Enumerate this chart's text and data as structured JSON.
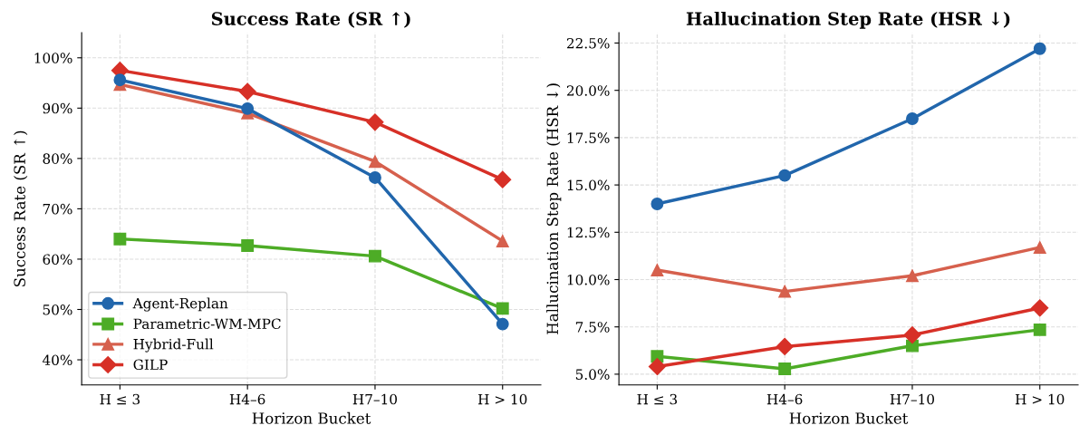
{
  "chart_data": [
    {
      "type": "line",
      "title": "Success Rate (SR ↑)",
      "xlabel": "Horizon Bucket",
      "ylabel": "Success Rate (SR ↑)",
      "categories": [
        "H ≤ 3",
        "H4–6",
        "H7–10",
        "H > 10"
      ],
      "ylim": [
        35,
        105
      ],
      "yticks": [
        {
          "value": 40,
          "label": "40%"
        },
        {
          "value": 50,
          "label": "50%"
        },
        {
          "value": 60,
          "label": "60%"
        },
        {
          "value": 70,
          "label": "70%"
        },
        {
          "value": 80,
          "label": "80%"
        },
        {
          "value": 90,
          "label": "90%"
        },
        {
          "value": 100,
          "label": "100%"
        }
      ],
      "grid": true,
      "legend": "bottom left",
      "series": [
        {
          "name": "Agent-Replan",
          "color": "#2166ac",
          "marker": "circle",
          "values": [
            95.6,
            89.9,
            76.2,
            47.1
          ]
        },
        {
          "name": "Parametric-WM-MPC",
          "color": "#4dac26",
          "marker": "square",
          "values": [
            64.0,
            62.7,
            60.6,
            50.2
          ]
        },
        {
          "name": "Hybrid-Full",
          "color": "#d6604d",
          "marker": "triangle",
          "values": [
            94.7,
            89.0,
            79.4,
            63.6
          ]
        },
        {
          "name": "GILP",
          "color": "#d73027",
          "marker": "diamond",
          "values": [
            97.5,
            93.3,
            87.2,
            75.8
          ]
        }
      ]
    },
    {
      "type": "line",
      "title": "Hallucination Step Rate (HSR ↓)",
      "xlabel": "Horizon Bucket",
      "ylabel": "Hallucination Step Rate (HSR ↓)",
      "categories": [
        "H ≤ 3",
        "H4–6",
        "H7–10",
        "H > 10"
      ],
      "ylim": [
        4.43,
        23.05
      ],
      "yticks": [
        {
          "value": 5,
          "label": "5.0%"
        },
        {
          "value": 7.5,
          "label": "7.5%"
        },
        {
          "value": 10,
          "label": "10.0%"
        },
        {
          "value": 12.5,
          "label": "12.5%"
        },
        {
          "value": 15,
          "label": "15.0%"
        },
        {
          "value": 17.5,
          "label": "17.5%"
        },
        {
          "value": 20,
          "label": "20.0%"
        },
        {
          "value": 22.5,
          "label": "22.5%"
        }
      ],
      "grid": true,
      "series": [
        {
          "color": "#2166ac",
          "marker": "circle",
          "values": [
            14.0,
            15.5,
            18.5,
            22.2
          ]
        },
        {
          "color": "#4dac26",
          "marker": "square",
          "values": [
            5.94,
            5.28,
            6.5,
            7.35
          ]
        },
        {
          "color": "#d6604d",
          "marker": "triangle",
          "values": [
            10.5,
            9.37,
            10.2,
            11.7
          ]
        },
        {
          "color": "#d73027",
          "marker": "diamond",
          "values": [
            5.4,
            6.46,
            7.07,
            8.5
          ]
        }
      ]
    }
  ]
}
